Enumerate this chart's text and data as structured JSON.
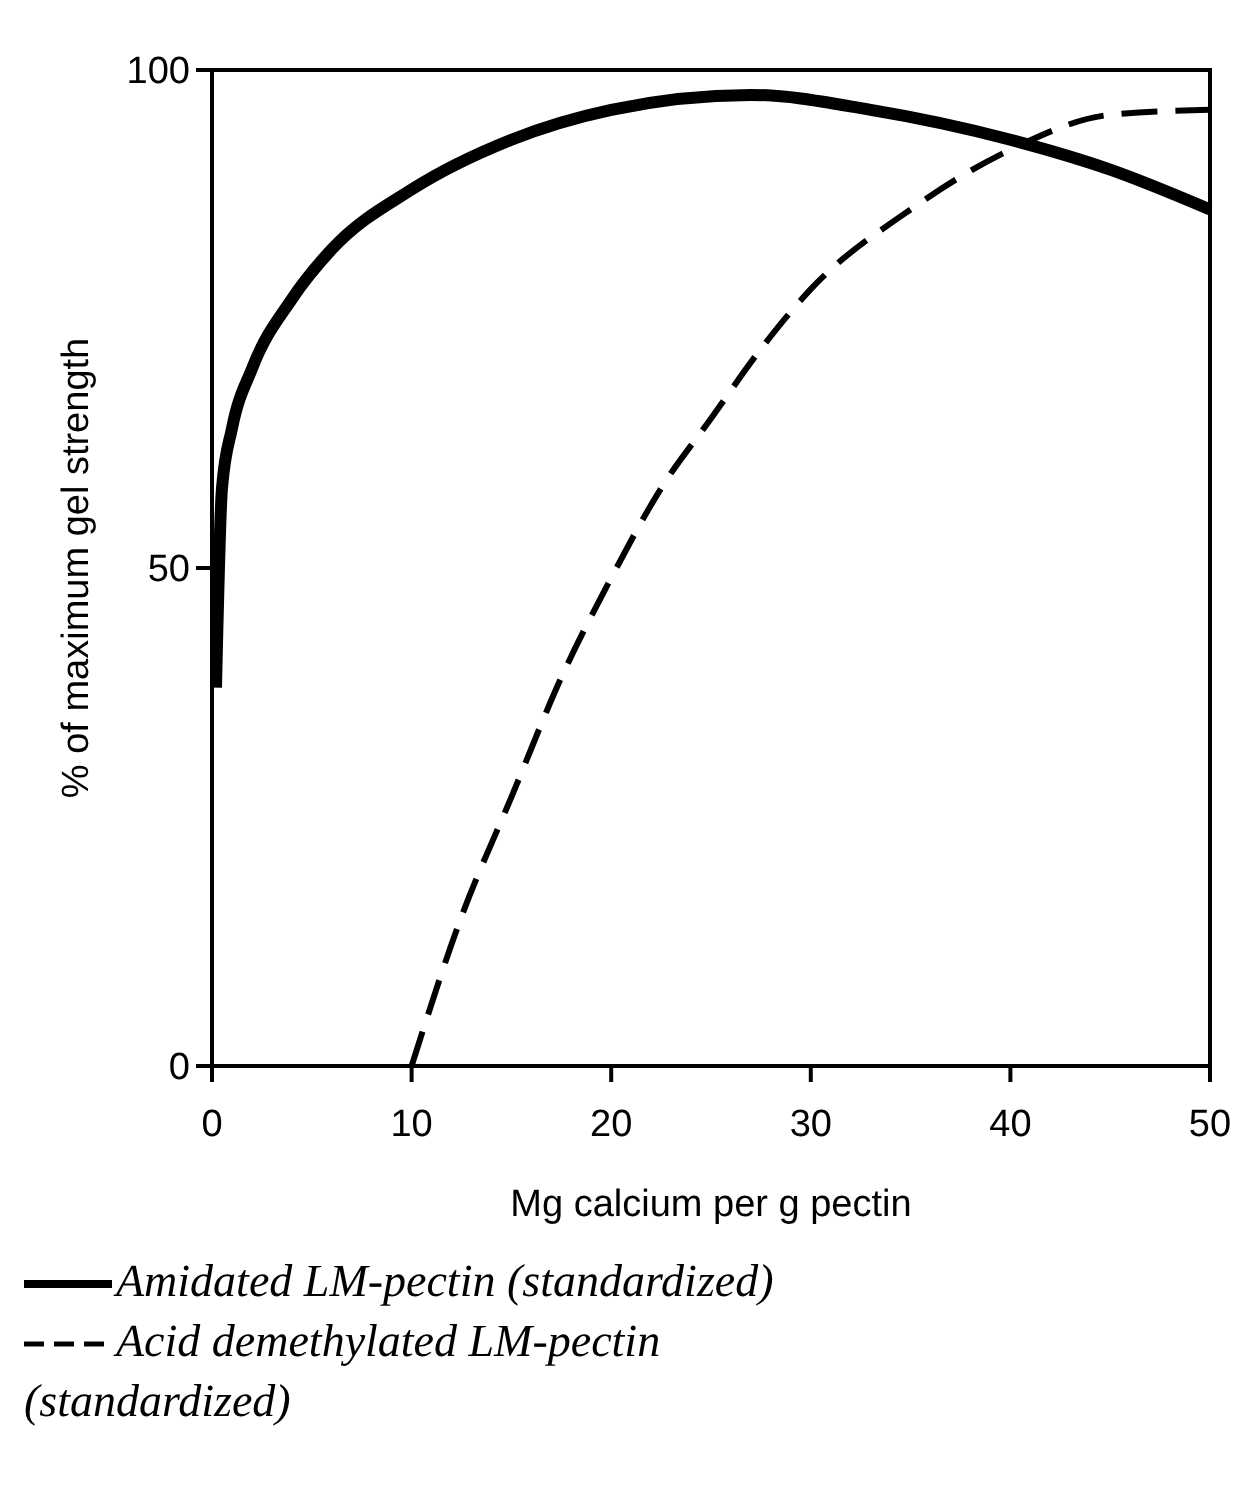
{
  "chart_data": {
    "type": "line",
    "xlabel": "Mg calcium per g pectin",
    "ylabel": "% of maximum gel strength",
    "xlim": [
      0,
      50
    ],
    "ylim": [
      0,
      100
    ],
    "xticks": [
      0,
      10,
      20,
      30,
      40,
      50
    ],
    "yticks": [
      0,
      50,
      100
    ],
    "grid": false,
    "legend": "bottom",
    "marker": "none",
    "series": [
      {
        "name": "Amidated LM-pectin (standardized)",
        "color": "#000000",
        "line_style": "solid",
        "x": [
          0.2,
          0.5,
          1,
          2,
          4,
          6,
          10,
          15,
          20,
          27,
          33,
          40,
          45,
          50
        ],
        "values": [
          38,
          58,
          64,
          70,
          77,
          82,
          88,
          93,
          96,
          97.5,
          96,
          93,
          90,
          86
        ]
      },
      {
        "name": "Acid demethylated LM-pectin (standardized)",
        "color": "#000000",
        "line_style": "dashed",
        "x": [
          10,
          12.5,
          15,
          17.5,
          20,
          22.5,
          25,
          27.5,
          30,
          35,
          40,
          45,
          50
        ],
        "values": [
          0,
          15,
          27,
          39,
          49,
          58,
          65,
          72,
          78,
          86,
          92,
          95.5,
          96
        ]
      }
    ]
  }
}
